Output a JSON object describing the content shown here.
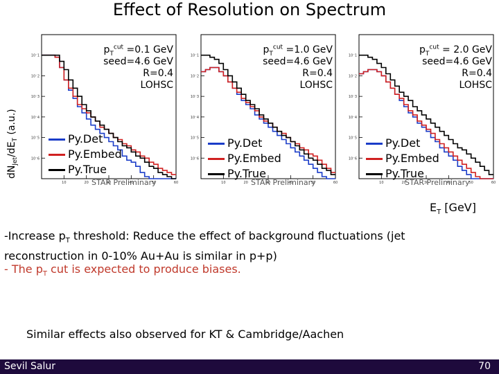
{
  "slide": {
    "title": "Effect of Resolution on Spectrum",
    "y_axis_label": "dN",
    "y_axis_label_sub": "Jet",
    "y_axis_label_mid": "/dE",
    "y_axis_label_sub2": "T",
    "y_axis_label_unit": " (a.u.)",
    "x_axis_unit_prefix": "E",
    "x_axis_unit_sub": "T",
    "x_axis_unit_suffix": " [GeV]",
    "bullet1_a": "-Increase p",
    "bullet1_sub": "T",
    "bullet1_b": " threshold: Reduce the effect of background fluctuations (jet",
    "bullet1_c": "reconstruction in 0-10% Au+Au is similar in p+p)",
    "bullet2_a": "- The p",
    "bullet2_sub": "T",
    "bullet2_b": " cut is expected to produce biases.",
    "bullet3": "Similar effects also observed for KT & Cambridge/Aachen",
    "footer_author": "Sevil Salur",
    "footer_page": "70"
  },
  "colors": {
    "det": "#1a3cc8",
    "embed": "#d02020",
    "true": "#000000",
    "footer_bg": "#1e0a3c",
    "bullet2": "#c0392b"
  },
  "chart_data": [
    {
      "type": "line",
      "panel_label_prefix": "p",
      "panel_label_sub": "T",
      "panel_label_sup": "cut",
      "cut_text": " =0.1 GeV",
      "seed": "seed=4.6 GeV",
      "radius": "R=0.4",
      "algo": "LOHSC",
      "preliminary": "STAR Preliminary",
      "x": [
        0,
        2,
        4,
        6,
        8,
        10,
        12,
        14,
        16,
        18,
        20,
        22,
        24,
        26,
        28,
        30,
        32,
        34,
        36,
        38,
        40,
        42,
        44,
        46,
        48,
        50,
        52,
        54,
        56,
        58,
        60
      ],
      "xlim": [
        0,
        60
      ],
      "ylim_log10": [
        -7,
        0
      ],
      "y_ticks_log10": [
        -1,
        -2,
        -3,
        -4,
        -5,
        -6
      ],
      "x_ticks": [
        10,
        20,
        30,
        40,
        50,
        60
      ],
      "series": [
        {
          "name": "Py.Det",
          "key": "det",
          "log10y": [
            -1.0,
            -1.0,
            -1.0,
            -1.1,
            -1.6,
            -2.2,
            -2.7,
            -3.1,
            -3.5,
            -3.8,
            -4.1,
            -4.4,
            -4.6,
            -4.8,
            -5.0,
            -5.2,
            -5.4,
            -5.6,
            -5.9,
            -6.1,
            -6.2,
            -6.4,
            -6.7,
            -6.9,
            -7.0,
            -7.0,
            -7.0,
            -7.0,
            -7.0,
            -7.0,
            -7.0
          ]
        },
        {
          "name": "Py.Embed",
          "key": "embed",
          "log10y": [
            -1.0,
            -1.0,
            -1.0,
            -1.1,
            -1.6,
            -2.2,
            -2.6,
            -3.0,
            -3.4,
            -3.6,
            -3.8,
            -4.0,
            -4.2,
            -4.5,
            -4.6,
            -4.8,
            -5.0,
            -5.1,
            -5.3,
            -5.4,
            -5.6,
            -5.7,
            -5.9,
            -6.0,
            -6.2,
            -6.3,
            -6.5,
            -6.6,
            -6.7,
            -6.8,
            -6.9
          ]
        },
        {
          "name": "Py.True",
          "key": "true",
          "log10y": [
            -1.0,
            -1.0,
            -1.0,
            -1.0,
            -1.3,
            -1.7,
            -2.2,
            -2.6,
            -3.0,
            -3.4,
            -3.7,
            -4.0,
            -4.2,
            -4.4,
            -4.6,
            -4.8,
            -5.0,
            -5.2,
            -5.4,
            -5.5,
            -5.7,
            -5.9,
            -6.0,
            -6.2,
            -6.4,
            -6.5,
            -6.7,
            -6.8,
            -6.9,
            -7.0,
            -7.0
          ]
        }
      ]
    },
    {
      "type": "line",
      "panel_label_prefix": "p",
      "panel_label_sub": "T",
      "panel_label_sup": "cut",
      "cut_text": " =1.0 GeV",
      "seed": "seed=4.6 GeV",
      "radius": "R=0.4",
      "algo": "LOHSC",
      "preliminary": "STAR Preliminary",
      "x": [
        0,
        2,
        4,
        6,
        8,
        10,
        12,
        14,
        16,
        18,
        20,
        22,
        24,
        26,
        28,
        30,
        32,
        34,
        36,
        38,
        40,
        42,
        44,
        46,
        48,
        50,
        52,
        54,
        56,
        58,
        60
      ],
      "xlim": [
        0,
        60
      ],
      "ylim_log10": [
        -7,
        0
      ],
      "y_ticks_log10": [
        -1,
        -2,
        -3,
        -4,
        -5,
        -6
      ],
      "x_ticks": [
        10,
        20,
        30,
        40,
        50,
        60
      ],
      "series": [
        {
          "name": "Py.Det",
          "key": "det",
          "log10y": [
            -1.8,
            -1.7,
            -1.6,
            -1.6,
            -1.8,
            -2.0,
            -2.3,
            -2.6,
            -2.9,
            -3.2,
            -3.4,
            -3.6,
            -3.9,
            -4.1,
            -4.3,
            -4.5,
            -4.7,
            -4.9,
            -5.1,
            -5.3,
            -5.5,
            -5.7,
            -5.9,
            -6.1,
            -6.3,
            -6.5,
            -6.7,
            -6.9,
            -7.0,
            -7.0,
            -7.0
          ]
        },
        {
          "name": "Py.Embed",
          "key": "embed",
          "log10y": [
            -1.8,
            -1.7,
            -1.6,
            -1.6,
            -1.8,
            -2.0,
            -2.3,
            -2.6,
            -2.8,
            -3.1,
            -3.3,
            -3.5,
            -3.7,
            -4.0,
            -4.2,
            -4.3,
            -4.5,
            -4.7,
            -4.8,
            -5.0,
            -5.2,
            -5.3,
            -5.5,
            -5.6,
            -5.8,
            -5.9,
            -6.1,
            -6.3,
            -6.5,
            -6.7,
            -6.8
          ]
        },
        {
          "name": "Py.True",
          "key": "true",
          "log10y": [
            -1.0,
            -1.0,
            -1.1,
            -1.2,
            -1.4,
            -1.7,
            -2.0,
            -2.3,
            -2.6,
            -2.9,
            -3.2,
            -3.4,
            -3.6,
            -3.9,
            -4.1,
            -4.3,
            -4.5,
            -4.7,
            -4.9,
            -5.0,
            -5.2,
            -5.4,
            -5.6,
            -5.8,
            -6.0,
            -6.1,
            -6.3,
            -6.5,
            -6.6,
            -6.8,
            -7.0
          ]
        }
      ]
    },
    {
      "type": "line",
      "panel_label_prefix": "p",
      "panel_label_sub": "T",
      "panel_label_sup": "cut",
      "cut_text": " = 2.0 GeV",
      "seed": "seed=4.6 GeV",
      "radius": "R=0.4",
      "algo": "LOHSC",
      "preliminary": "STAR Preliminary",
      "x": [
        0,
        2,
        4,
        6,
        8,
        10,
        12,
        14,
        16,
        18,
        20,
        22,
        24,
        26,
        28,
        30,
        32,
        34,
        36,
        38,
        40,
        42,
        44,
        46,
        48,
        50,
        52,
        54,
        56,
        58,
        60
      ],
      "xlim": [
        0,
        60
      ],
      "ylim_log10": [
        -7,
        0
      ],
      "y_ticks_log10": [
        -1,
        -2,
        -3,
        -4,
        -5,
        -6
      ],
      "x_ticks": [
        10,
        20,
        30,
        40,
        50,
        60
      ],
      "series": [
        {
          "name": "Py.Det",
          "key": "det",
          "log10y": [
            -1.9,
            -1.8,
            -1.7,
            -1.7,
            -1.8,
            -2.0,
            -2.3,
            -2.6,
            -2.9,
            -3.2,
            -3.5,
            -3.8,
            -4.0,
            -4.3,
            -4.5,
            -4.7,
            -5.0,
            -5.2,
            -5.5,
            -5.7,
            -5.9,
            -6.1,
            -6.4,
            -6.6,
            -6.8,
            -7.0,
            -7.0,
            -7.0,
            -7.0,
            -7.0,
            -7.0
          ]
        },
        {
          "name": "Py.Embed",
          "key": "embed",
          "log10y": [
            -1.9,
            -1.8,
            -1.7,
            -1.7,
            -1.8,
            -2.0,
            -2.3,
            -2.6,
            -2.9,
            -3.1,
            -3.4,
            -3.7,
            -3.9,
            -4.2,
            -4.4,
            -4.6,
            -4.8,
            -5.1,
            -5.3,
            -5.5,
            -5.7,
            -5.9,
            -6.1,
            -6.3,
            -6.5,
            -6.7,
            -6.9,
            -7.0,
            -7.0,
            -7.0,
            -7.0
          ]
        },
        {
          "name": "Py.True",
          "key": "true",
          "log10y": [
            -1.0,
            -1.0,
            -1.1,
            -1.2,
            -1.4,
            -1.6,
            -1.9,
            -2.2,
            -2.5,
            -2.8,
            -3.0,
            -3.2,
            -3.5,
            -3.7,
            -3.9,
            -4.1,
            -4.3,
            -4.5,
            -4.7,
            -4.9,
            -5.1,
            -5.3,
            -5.5,
            -5.6,
            -5.8,
            -6.0,
            -6.2,
            -6.4,
            -6.6,
            -6.8,
            -7.0
          ]
        }
      ]
    }
  ]
}
